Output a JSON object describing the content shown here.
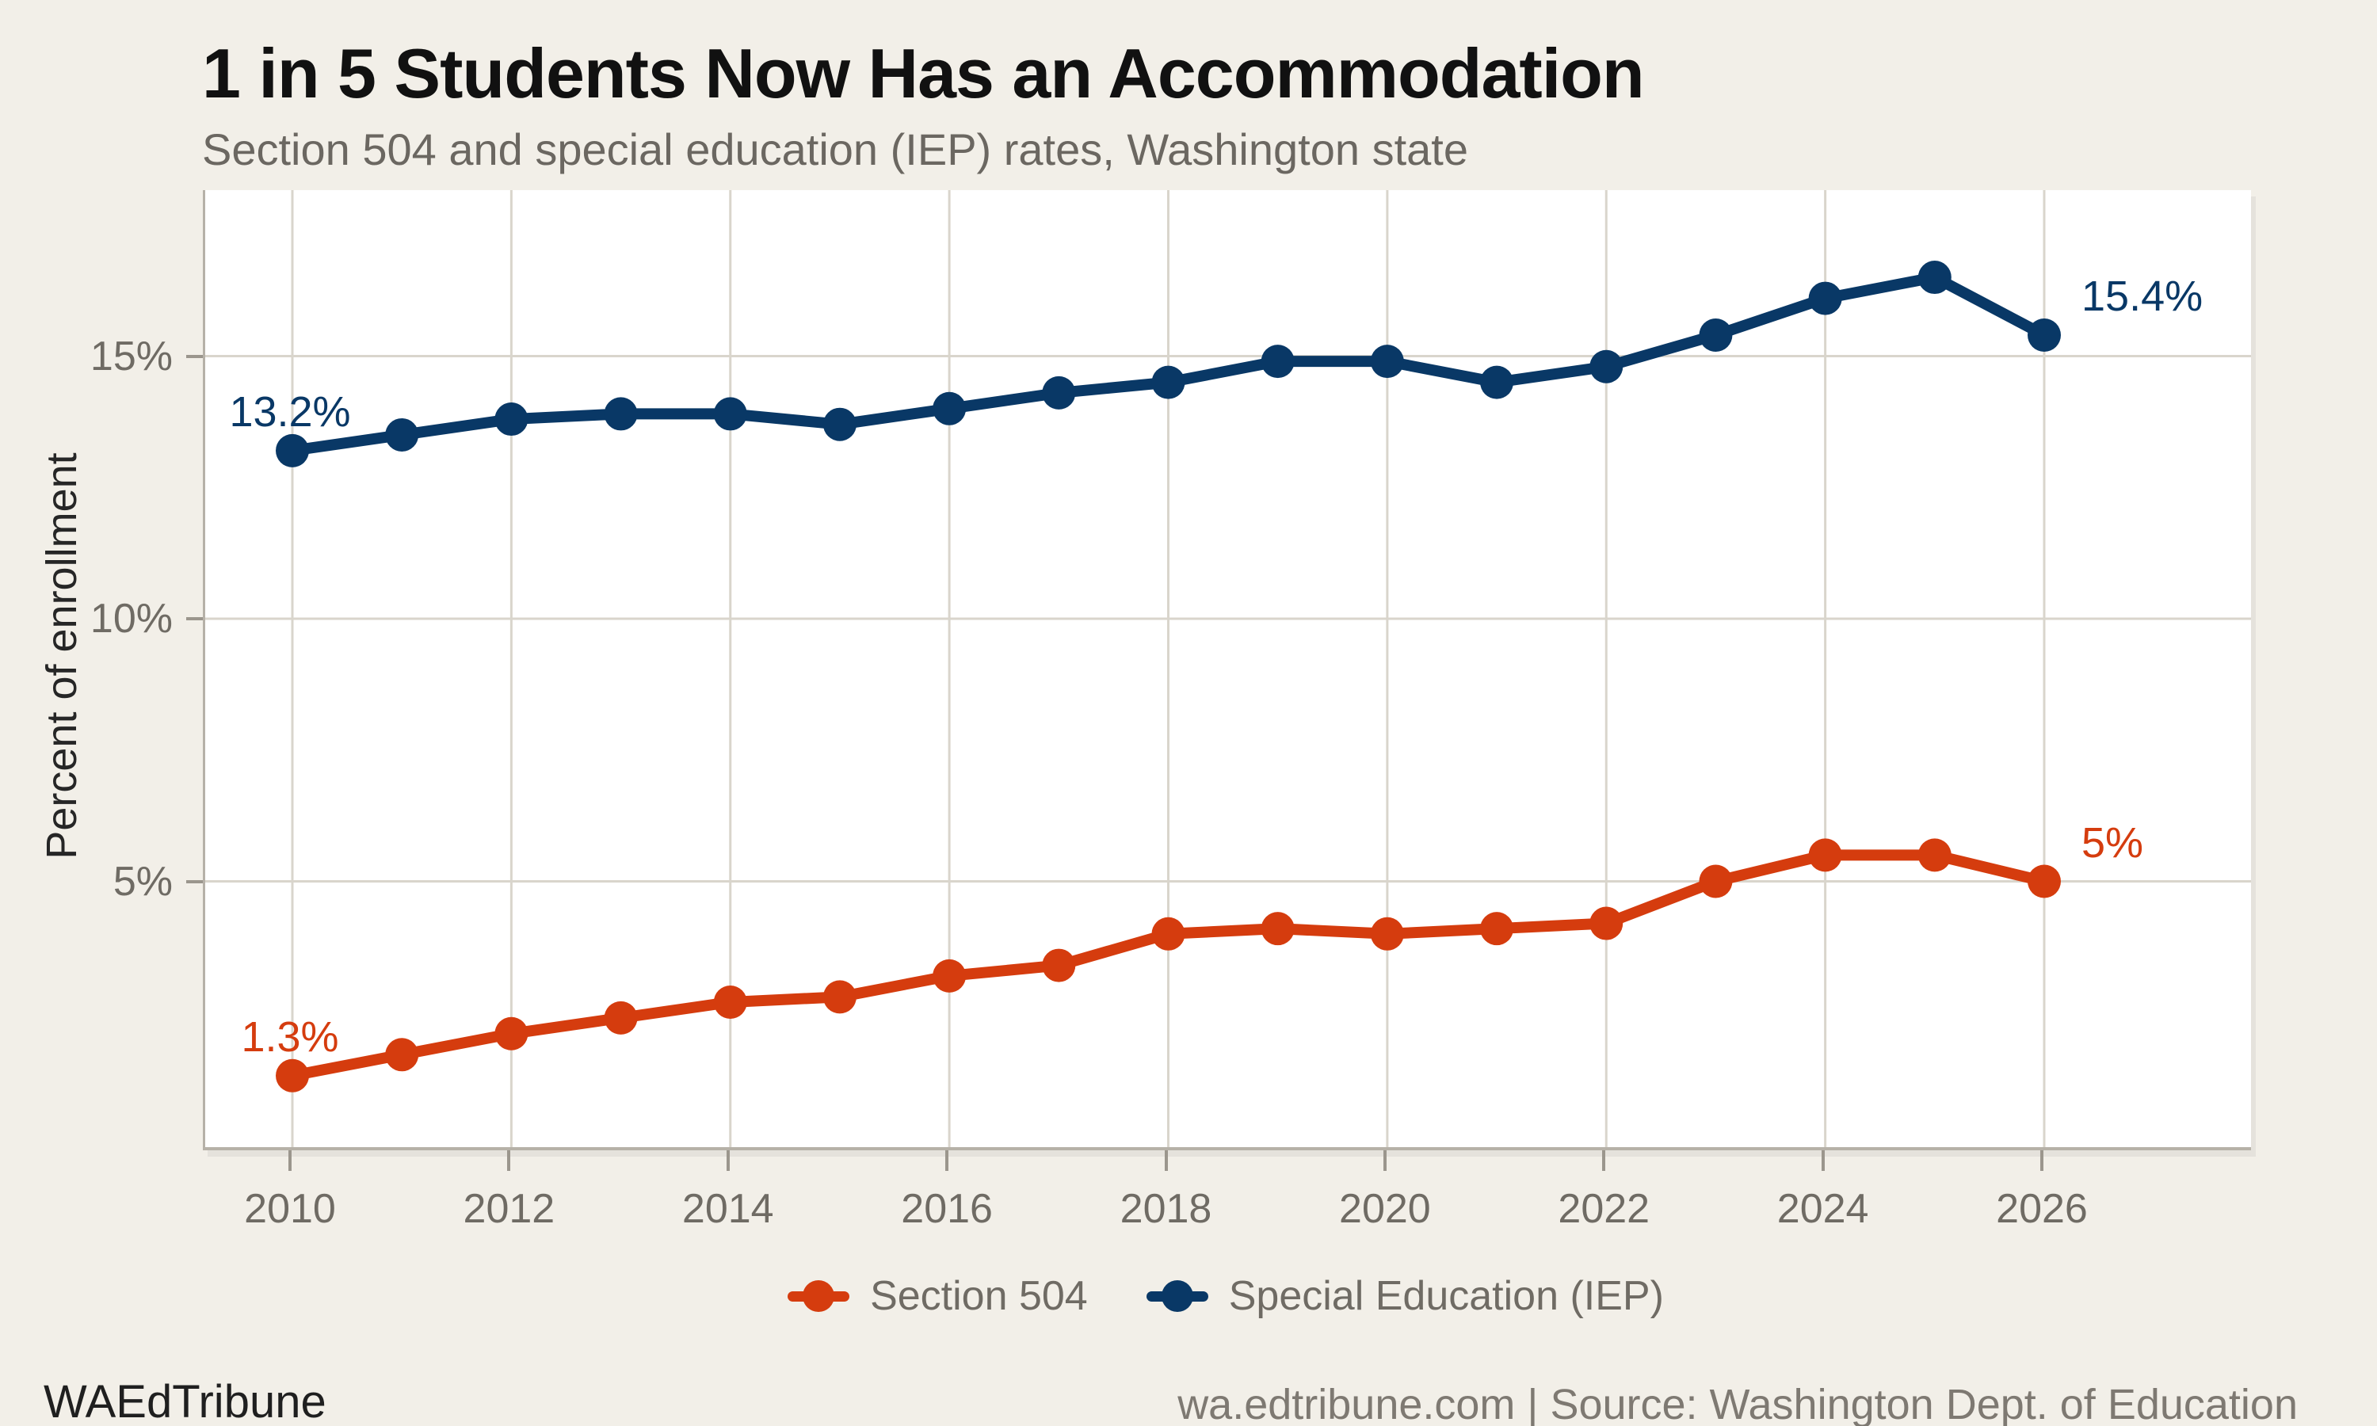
{
  "header": {
    "title": "1 in 5 Students Now Has an Accommodation",
    "subtitle": "Section 504 and special education (IEP) rates, Washington state"
  },
  "footer": {
    "brand": "WAEdTribune",
    "source": "wa.edtribune.com | Source: Washington Dept. of Education"
  },
  "colors": {
    "background": "#f2efe8",
    "panel": "#ffffff",
    "grid": "#d9d5cc",
    "axis": "#b6b1a8",
    "tick": "#9b968d",
    "tick_label": "#6f6b64",
    "section504": "#d53c0e",
    "iep": "#093866"
  },
  "chart_data": {
    "type": "line",
    "title": "1 in 5 Students Now Has an Accommodation",
    "xlabel": "",
    "ylabel": "Percent of enrollment",
    "x": [
      2010,
      2011,
      2012,
      2013,
      2014,
      2015,
      2016,
      2017,
      2018,
      2019,
      2020,
      2021,
      2022,
      2023,
      2024,
      2025,
      2026
    ],
    "x_ticks": [
      2010,
      2012,
      2014,
      2016,
      2018,
      2020,
      2022,
      2024,
      2026
    ],
    "x_tick_labels": [
      "2010",
      "2012",
      "2014",
      "2016",
      "2018",
      "2020",
      "2022",
      "2024",
      "2026"
    ],
    "y_ticks": [
      {
        "value": 5,
        "label": "5%"
      },
      {
        "value": 10,
        "label": "10%"
      },
      {
        "value": 15,
        "label": "15%"
      }
    ],
    "ylim": [
      0,
      18.2
    ],
    "xlim": [
      2009.2,
      2027.9
    ],
    "grid": true,
    "legend_position": "bottom-center",
    "series": [
      {
        "name": "Section 504",
        "color": "#d53c0e",
        "values": [
          1.3,
          1.7,
          2.1,
          2.4,
          2.7,
          2.8,
          3.2,
          3.4,
          4.0,
          4.1,
          4.0,
          4.1,
          4.2,
          5.0,
          5.5,
          5.5,
          5.0
        ]
      },
      {
        "name": "Special Education (IEP)",
        "color": "#093866",
        "values": [
          13.2,
          13.5,
          13.8,
          13.9,
          13.9,
          13.7,
          14.0,
          14.3,
          14.5,
          14.9,
          14.9,
          14.5,
          14.8,
          15.4,
          16.1,
          16.5,
          15.4
        ]
      }
    ],
    "annotations": [
      {
        "series": "Special Education (IEP)",
        "year": 2010,
        "value": 13.2,
        "text": "13.2%",
        "position": "start"
      },
      {
        "series": "Special Education (IEP)",
        "year": 2026,
        "value": 15.4,
        "text": "15.4%",
        "position": "end"
      },
      {
        "series": "Section 504",
        "year": 2010,
        "value": 1.3,
        "text": "1.3%",
        "position": "start"
      },
      {
        "series": "Section 504",
        "year": 2026,
        "value": 5.0,
        "text": "5%",
        "position": "end"
      }
    ]
  }
}
